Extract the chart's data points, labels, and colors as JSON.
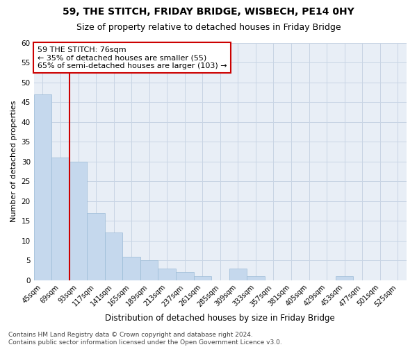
{
  "title1": "59, THE STITCH, FRIDAY BRIDGE, WISBECH, PE14 0HY",
  "title2": "Size of property relative to detached houses in Friday Bridge",
  "xlabel": "Distribution of detached houses by size in Friday Bridge",
  "ylabel": "Number of detached properties",
  "categories": [
    "45sqm",
    "69sqm",
    "93sqm",
    "117sqm",
    "141sqm",
    "165sqm",
    "189sqm",
    "213sqm",
    "237sqm",
    "261sqm",
    "285sqm",
    "309sqm",
    "333sqm",
    "357sqm",
    "381sqm",
    "405sqm",
    "429sqm",
    "453sqm",
    "477sqm",
    "501sqm",
    "525sqm"
  ],
  "values": [
    47,
    31,
    30,
    17,
    12,
    6,
    5,
    3,
    2,
    1,
    0,
    3,
    1,
    0,
    0,
    0,
    0,
    1,
    0,
    0,
    0
  ],
  "bar_color": "#c5d8ed",
  "bar_edge_color": "#9bbbd6",
  "grid_color": "#c8d4e4",
  "background_color": "#e8eef6",
  "vline_color": "#cc0000",
  "annotation_text": "59 THE STITCH: 76sqm\n← 35% of detached houses are smaller (55)\n65% of semi-detached houses are larger (103) →",
  "annotation_box_color": "white",
  "annotation_box_edge_color": "#cc0000",
  "ylim": [
    0,
    60
  ],
  "yticks": [
    0,
    5,
    10,
    15,
    20,
    25,
    30,
    35,
    40,
    45,
    50,
    55,
    60
  ],
  "footnote": "Contains HM Land Registry data © Crown copyright and database right 2024.\nContains public sector information licensed under the Open Government Licence v3.0.",
  "title1_fontsize": 10,
  "title2_fontsize": 9,
  "xlabel_fontsize": 8.5,
  "ylabel_fontsize": 8,
  "annotation_fontsize": 8,
  "footnote_fontsize": 6.5
}
